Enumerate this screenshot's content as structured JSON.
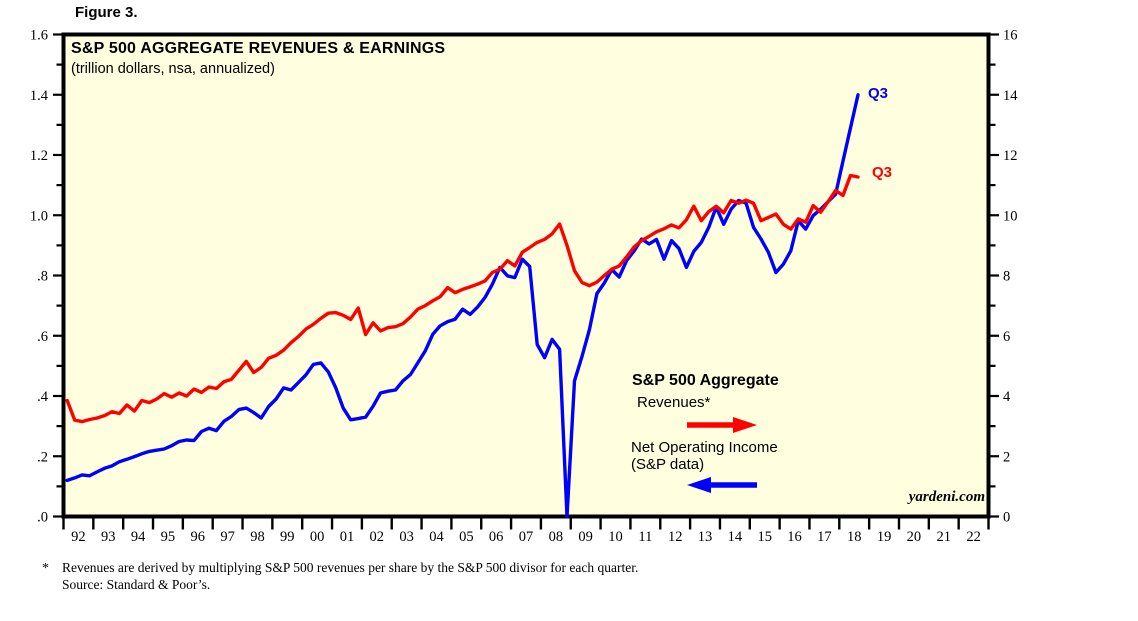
{
  "figure_label": "Figure 3.",
  "chart_data": {
    "type": "line",
    "title": "S&P 500 AGGREGATE REVENUES & EARNINGS",
    "subtitle": "(trillion dollars, nsa, annualized)",
    "watermark": "yardeni.com",
    "plot_bg": "#FFFFE0",
    "grid": false,
    "legend_position": "inside-lower-right",
    "x_start_year": 1992,
    "x_step_years": 0.25,
    "x_axis_years": [
      "92",
      "93",
      "94",
      "95",
      "96",
      "97",
      "98",
      "99",
      "00",
      "01",
      "02",
      "03",
      "04",
      "05",
      "06",
      "07",
      "08",
      "09",
      "10",
      "11",
      "12",
      "13",
      "14",
      "15",
      "16",
      "17",
      "18",
      "19",
      "20",
      "21",
      "22"
    ],
    "ylim_left": [
      0,
      1.6
    ],
    "ylim_right": [
      0,
      16
    ],
    "y_ticks_left": [
      "1.6",
      "1.4",
      "1.2",
      "1.0",
      ".8",
      ".6",
      ".4",
      ".2",
      ".0"
    ],
    "y_ticks_right": [
      "16",
      "14",
      "12",
      "10",
      "8",
      "6",
      "4",
      "2",
      "0"
    ],
    "legend": {
      "heading": "S&P 500 Aggregate",
      "revenues_label": "Revenues*",
      "noi_label_line1": "Net Operating Income",
      "noi_label_line2": "(S&P data)"
    },
    "series": [
      {
        "name": "S&P 500 Aggregate Revenues",
        "color": "#ff0000",
        "end_label": "Q3",
        "last_point": "2018 Q3 = 1.13 trillion",
        "values": [
          0.385,
          0.32,
          0.315,
          0.322,
          0.327,
          0.335,
          0.348,
          0.342,
          0.37,
          0.35,
          0.385,
          0.378,
          0.39,
          0.408,
          0.396,
          0.41,
          0.4,
          0.423,
          0.412,
          0.43,
          0.425,
          0.447,
          0.455,
          0.485,
          0.515,
          0.478,
          0.495,
          0.525,
          0.535,
          0.552,
          0.577,
          0.598,
          0.622,
          0.638,
          0.658,
          0.675,
          0.677,
          0.668,
          0.654,
          0.692,
          0.604,
          0.643,
          0.616,
          0.627,
          0.63,
          0.64,
          0.662,
          0.688,
          0.7,
          0.716,
          0.73,
          0.76,
          0.743,
          0.754,
          0.762,
          0.771,
          0.782,
          0.81,
          0.821,
          0.849,
          0.832,
          0.877,
          0.893,
          0.91,
          0.92,
          0.938,
          0.971,
          0.9,
          0.816,
          0.777,
          0.766,
          0.778,
          0.8,
          0.821,
          0.832,
          0.862,
          0.895,
          0.916,
          0.93,
          0.945,
          0.955,
          0.968,
          0.958,
          0.985,
          1.03,
          0.982,
          1.012,
          1.03,
          1.008,
          1.049,
          1.04,
          1.05,
          1.04,
          0.982,
          0.993,
          1.004,
          0.97,
          0.954,
          0.988,
          0.977,
          1.032,
          1.01,
          1.045,
          1.082,
          1.066,
          1.132,
          1.127
        ]
      },
      {
        "name": "Net Operating Income (S&P data)",
        "color": "#0000ff",
        "end_label": "Q3",
        "last_point": "2018 Q3 = 1.40 trillion",
        "values": [
          0.12,
          0.128,
          0.138,
          0.135,
          0.148,
          0.16,
          0.168,
          0.182,
          0.19,
          0.199,
          0.208,
          0.216,
          0.22,
          0.224,
          0.235,
          0.249,
          0.254,
          0.252,
          0.282,
          0.293,
          0.285,
          0.316,
          0.332,
          0.355,
          0.36,
          0.345,
          0.327,
          0.365,
          0.39,
          0.427,
          0.42,
          0.445,
          0.47,
          0.505,
          0.51,
          0.48,
          0.427,
          0.36,
          0.321,
          0.325,
          0.33,
          0.366,
          0.41,
          0.416,
          0.42,
          0.45,
          0.471,
          0.51,
          0.55,
          0.605,
          0.633,
          0.647,
          0.655,
          0.688,
          0.671,
          0.695,
          0.727,
          0.771,
          0.827,
          0.799,
          0.793,
          0.854,
          0.83,
          0.571,
          0.527,
          0.588,
          0.555,
          0.0,
          0.45,
          0.53,
          0.62,
          0.74,
          0.775,
          0.82,
          0.795,
          0.85,
          0.882,
          0.921,
          0.905,
          0.92,
          0.854,
          0.916,
          0.89,
          0.827,
          0.88,
          0.91,
          0.96,
          1.027,
          0.97,
          1.02,
          1.049,
          1.04,
          0.96,
          0.921,
          0.877,
          0.81,
          0.838,
          0.882,
          0.982,
          0.954,
          0.999,
          1.02,
          1.045,
          1.07,
          1.18,
          1.29,
          1.4
        ]
      }
    ]
  },
  "footnote": {
    "marker": "*",
    "line1": "Revenues are derived by multiplying S&P 500 revenues per share by the S&P 500 divisor for each quarter.",
    "line2": "Source: Standard & Poor’s."
  }
}
